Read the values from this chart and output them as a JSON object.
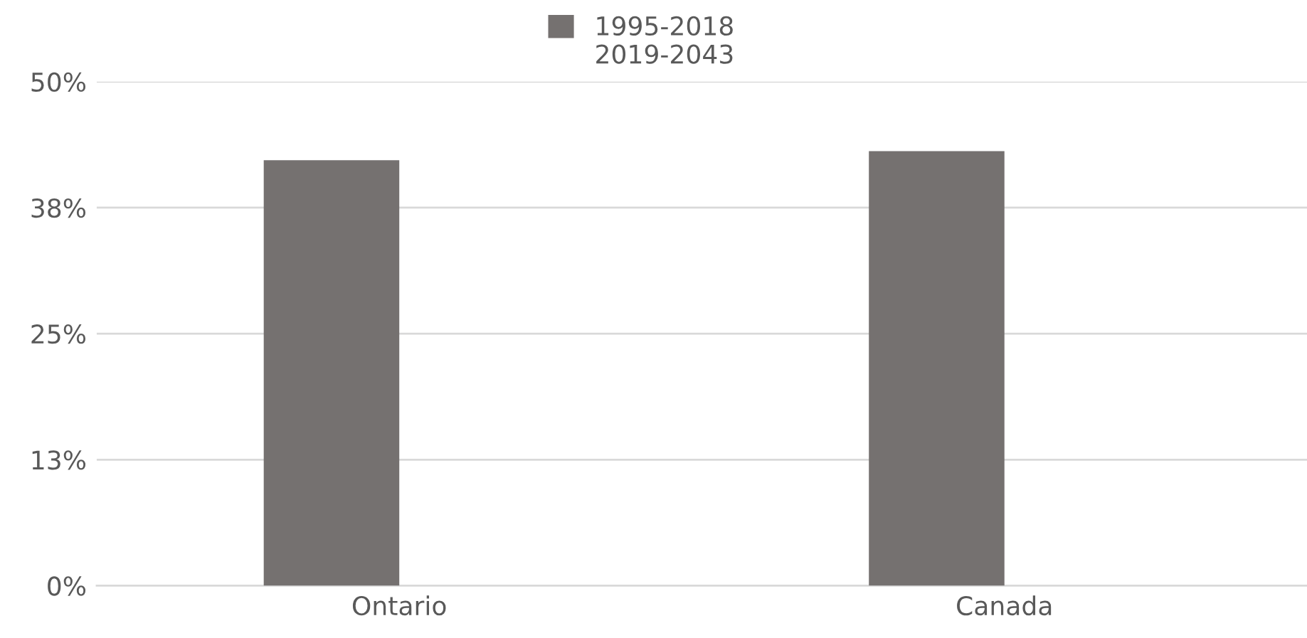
{
  "chart_data": {
    "type": "bar",
    "categories": [
      "Ontario",
      "Canada"
    ],
    "series": [
      {
        "name": "1995-2018",
        "color": "#757170",
        "values": [
          42.2,
          43.1
        ]
      },
      {
        "name": "2019-2043",
        "values": [
          null,
          null
        ]
      }
    ],
    "ylim": [
      0,
      50
    ],
    "yticks": [
      {
        "value": 0,
        "label": "0%"
      },
      {
        "value": 12.5,
        "label": "13%"
      },
      {
        "value": 25,
        "label": "25%"
      },
      {
        "value": 37.5,
        "label": "38%"
      },
      {
        "value": 50,
        "label": "50%"
      }
    ],
    "grid": "y",
    "legend": "top"
  }
}
